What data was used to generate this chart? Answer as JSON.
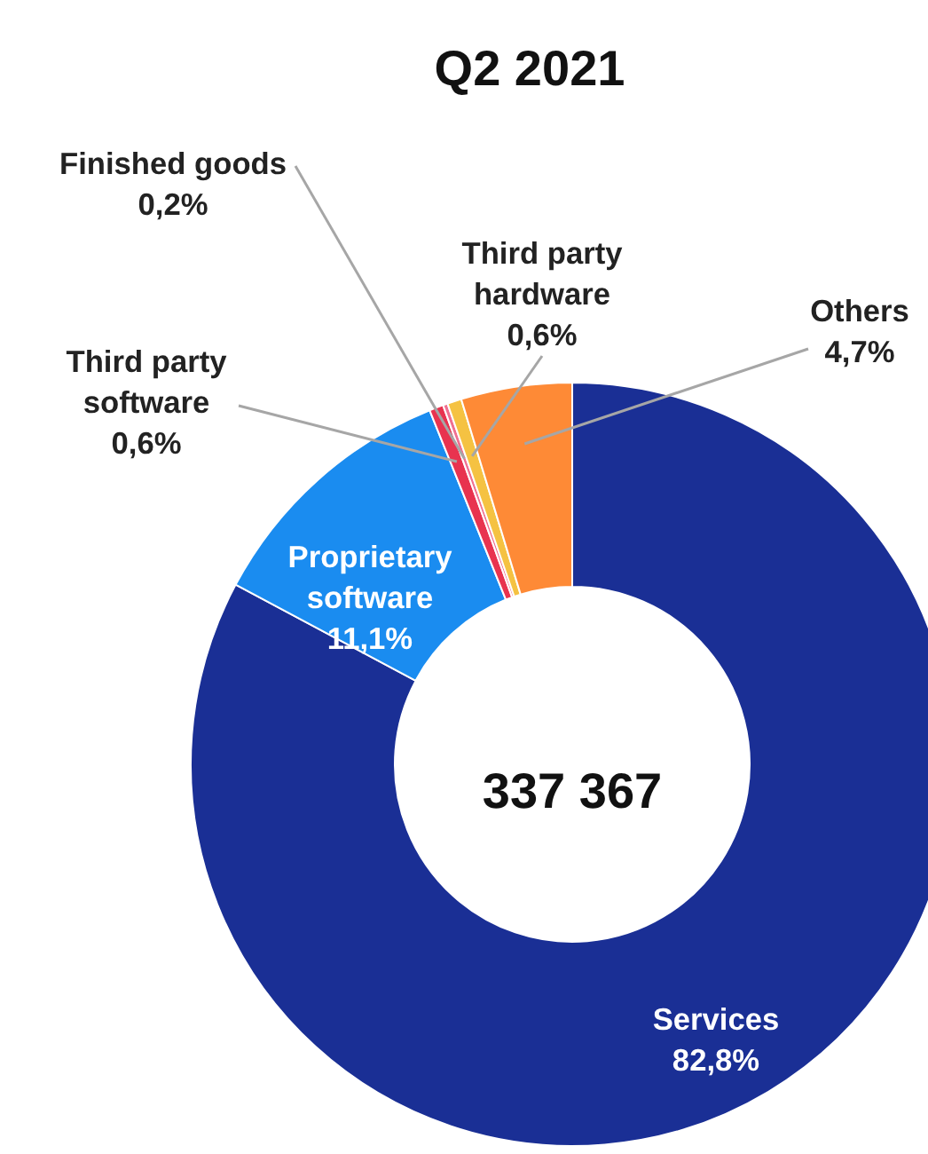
{
  "chart_data": {
    "type": "donut",
    "title": "Q2 2021",
    "categories": [
      "Services",
      "Proprietary software",
      "Third party software",
      "Finished goods",
      "Third party hardware",
      "Others"
    ],
    "values": [
      82.8,
      11.1,
      0.6,
      0.2,
      0.6,
      4.7
    ],
    "value_labels": [
      "82,8%",
      "11,1%",
      "0,6%",
      "0,2%",
      "0,6%",
      "4,7%"
    ],
    "colors": [
      "#1a2f95",
      "#1a8cf0",
      "#e8334f",
      "#f07090",
      "#f5c242",
      "#fe8a36"
    ],
    "annotations": [
      "337 367"
    ]
  }
}
